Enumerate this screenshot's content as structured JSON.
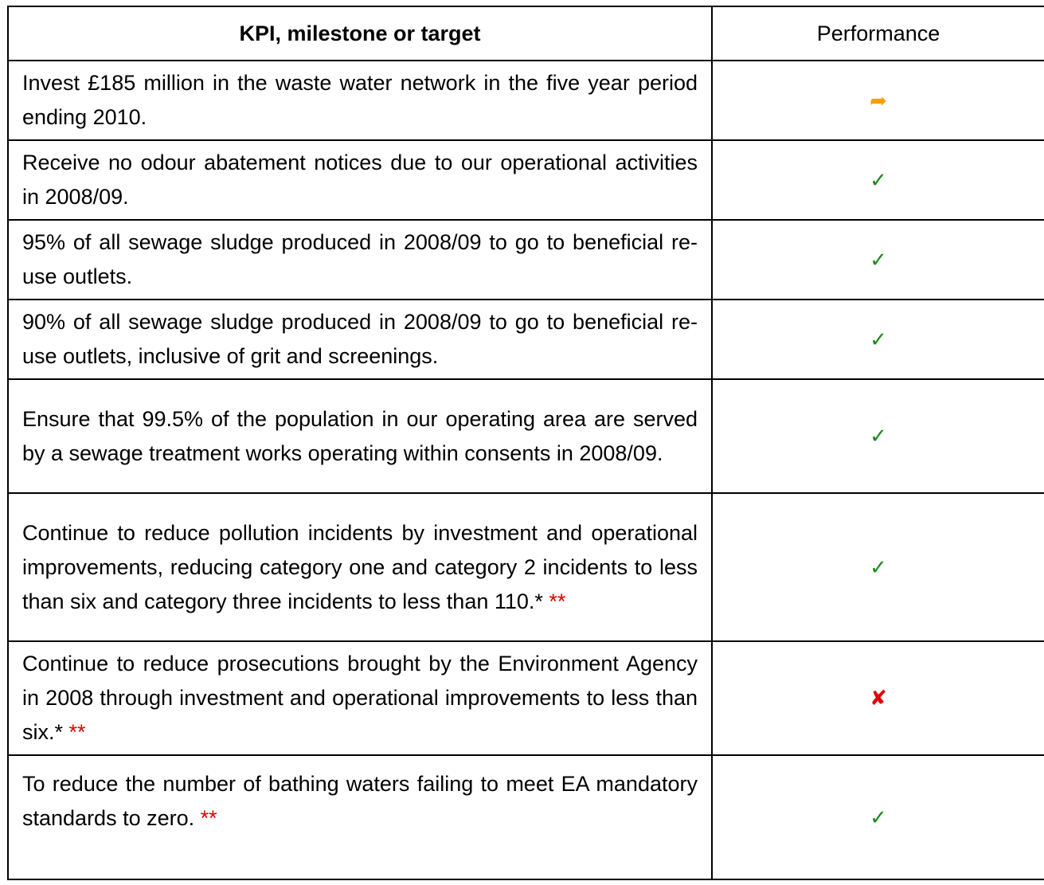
{
  "table": {
    "header": [
      "KPI, milestone or target",
      "Performance"
    ],
    "rows": [
      {
        "text": "Invest £185 million in the waste water network in the five year period ending 2010.",
        "status": "➦",
        "status_color": "#f5a000"
      },
      {
        "text": "Receive no odour abatement notices due to our operational activities in 2008/09.",
        "status": "✓",
        "status_color": "#1a8a1a"
      },
      {
        "text": "95% of all sewage sludge produced in 2008/09 to go to beneficial re-use outlets.",
        "status": "✓",
        "status_color": "#1a8a1a"
      },
      {
        "text": "90% of all sewage sludge produced in 2008/09 to go to beneficial re-use outlets, inclusive of grit and screenings.",
        "status": "✓",
        "status_color": "#1a8a1a"
      },
      {
        "text": "Ensure that 99.5% of the population in our operating area are served by a sewage treatment works operating within consents in 2008/09.",
        "status": "✓",
        "status_color": "#1a8a1a"
      },
      {
        "text": "Continue to reduce pollution incidents by investment and operational improvements, reducing category one and category 2 incidents to less than six and category three incidents to less than 110.*",
        "note": "**",
        "status": "✓",
        "status_color": "#1a8a1a"
      },
      {
        "text": "Continue to reduce prosecutions brought by the Environment Agency in 2008 through investment and operational improvements to less than six.*",
        "note": "**",
        "status": "✘",
        "status_color": "#e00000"
      },
      {
        "text": "To reduce the number of bathing waters failing to meet EA mandatory standards to zero.",
        "note": "**",
        "status": "✓",
        "status_color": "#1a8a1a"
      }
    ]
  }
}
